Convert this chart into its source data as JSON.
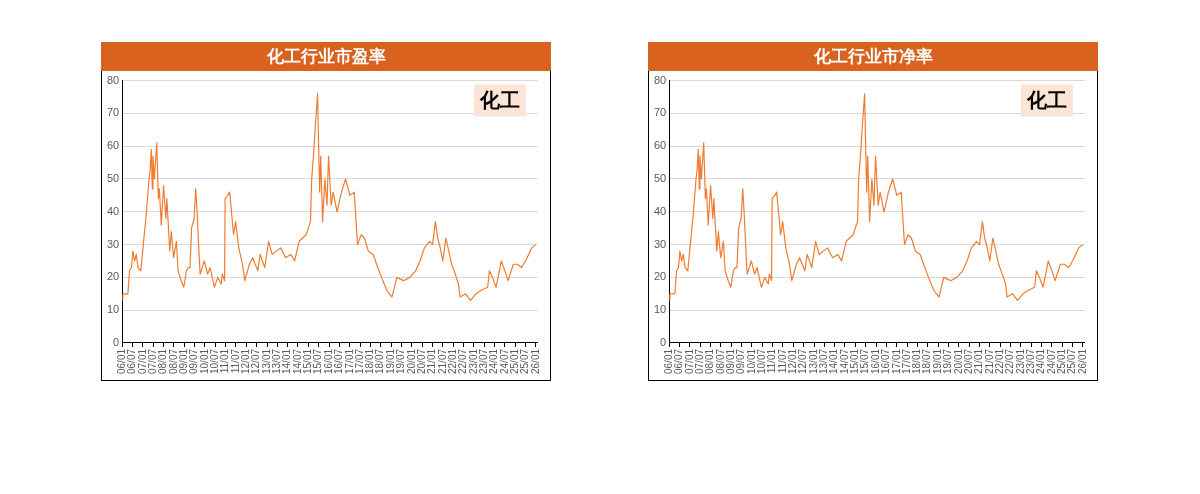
{
  "chart_data": [
    {
      "type": "line",
      "title": "化工行业市盈率",
      "annotations": [
        "化工"
      ],
      "grid": "y",
      "legend": false,
      "marker": "none",
      "ylim": [
        0,
        80
      ],
      "yticks": [
        0,
        10,
        20,
        30,
        40,
        50,
        60,
        70,
        80
      ],
      "xlim": [
        "2006-01-01",
        "2026-02-05"
      ],
      "xticks": [
        {
          "value": "2006-01",
          "label": "06/01"
        },
        {
          "value": "2006-07",
          "label": "06/07"
        },
        {
          "value": "2007-01",
          "label": "07/01"
        },
        {
          "value": "2007-07",
          "label": "07/07"
        },
        {
          "value": "2008-01",
          "label": "08/01"
        },
        {
          "value": "2008-07",
          "label": "08/07"
        },
        {
          "value": "2009-01",
          "label": "09/01"
        },
        {
          "value": "2009-07",
          "label": "09/07"
        },
        {
          "value": "2010-01",
          "label": "10/01"
        },
        {
          "value": "2010-07",
          "label": "10/07"
        },
        {
          "value": "2011-01",
          "label": "11/01"
        },
        {
          "value": "2011-07",
          "label": "11/07"
        },
        {
          "value": "2012-01",
          "label": "12/01"
        },
        {
          "value": "2012-07",
          "label": "12/07"
        },
        {
          "value": "2013-01",
          "label": "13/01"
        },
        {
          "value": "2013-07",
          "label": "13/07"
        },
        {
          "value": "2014-01",
          "label": "14/01"
        },
        {
          "value": "2014-07",
          "label": "14/07"
        },
        {
          "value": "2015-01",
          "label": "15/01"
        },
        {
          "value": "2015-07",
          "label": "15/07"
        },
        {
          "value": "2016-01",
          "label": "16/01"
        },
        {
          "value": "2016-07",
          "label": "16/07"
        },
        {
          "value": "2017-01",
          "label": "17/01"
        },
        {
          "value": "2017-07",
          "label": "17/07"
        },
        {
          "value": "2018-01",
          "label": "18/01"
        },
        {
          "value": "2018-07",
          "label": "18/07"
        },
        {
          "value": "2019-01",
          "label": "19/01"
        },
        {
          "value": "2019-07",
          "label": "19/07"
        },
        {
          "value": "2020-01",
          "label": "20/01"
        },
        {
          "value": "2020-07",
          "label": "20/07"
        },
        {
          "value": "2021-01",
          "label": "21/01"
        },
        {
          "value": "2021-07",
          "label": "21/07"
        },
        {
          "value": "2022-01",
          "label": "22/01"
        },
        {
          "value": "2022-07",
          "label": "22/07"
        },
        {
          "value": "2023-01",
          "label": "23/01"
        },
        {
          "value": "2023-07",
          "label": "23/07"
        },
        {
          "value": "2024-01",
          "label": "24/01"
        },
        {
          "value": "2024-07",
          "label": "24/07"
        },
        {
          "value": "2025-01",
          "label": "25/01"
        },
        {
          "value": "2025-07",
          "label": "25/07"
        },
        {
          "value": "2026-01",
          "label": "26/01"
        }
      ],
      "series": [
        {
          "color": "#ee7d31",
          "x": [
            "2006-01-01",
            "2006-01-11",
            "2006-04-11",
            "2006-05-10",
            "2006-06-13",
            "2006-07-08",
            "2006-08-07",
            "2006-09-05",
            "2006-10-08",
            "2006-11-25",
            "2007-01-08",
            "2007-03-05",
            "2007-04-19",
            "2007-05-10",
            "2007-05-28",
            "2007-06-16",
            "2007-06-27",
            "2007-07-22",
            "2007-09-02",
            "2007-10-01",
            "2007-10-19",
            "2007-11-21",
            "2008-01-01",
            "2008-02-10",
            "2008-02-28",
            "2008-04-19",
            "2008-05-17",
            "2008-06-27",
            "2008-08-14",
            "2008-09-13",
            "2008-11-07",
            "2008-12-23",
            "2009-02-07",
            "2009-03-13",
            "2009-04-11",
            "2009-05-10",
            "2009-06-23",
            "2009-07-22",
            "2009-08-21",
            "2009-09-13",
            "2009-10-08",
            "2009-12-20",
            "2010-02-17",
            "2010-04-01",
            "2010-06-16",
            "2010-08-14",
            "2010-10-15",
            "2010-11-03",
            "2010-12-13",
            "2010-12-23",
            "2011-02-07",
            "2011-03-13",
            "2011-05-21",
            "2011-06-27",
            "2011-08-21",
            "2011-10-26",
            "2011-12-05",
            "2012-02-25",
            "2012-04-22",
            "2012-07-22",
            "2012-09-02",
            "2012-11-21",
            "2013-01-29",
            "2013-04-01",
            "2013-06-13",
            "2013-08-28",
            "2013-11-25",
            "2014-02-25",
            "2014-05-03",
            "2014-07-22",
            "2014-11-21",
            "2015-02-07",
            "2015-02-28",
            "2015-04-04",
            "2015-05-03",
            "2015-06-13",
            "2015-07-01",
            "2015-07-19",
            "2015-08-07",
            "2015-09-09",
            "2015-10-19",
            "2015-11-25",
            "2015-12-23",
            "2016-02-07",
            "2016-03-13",
            "2016-05-21",
            "2016-08-07",
            "2016-10-19",
            "2017-01-01",
            "2017-03-20",
            "2017-05-17",
            "2017-07-19",
            "2017-09-16",
            "2017-11-25",
            "2018-02-17",
            "2018-04-19",
            "2018-07-15",
            "2018-10-19",
            "2019-01-15",
            "2019-04-11",
            "2019-08-10",
            "2019-11-25",
            "2020-03-09",
            "2020-05-25",
            "2020-08-10",
            "2020-11-10",
            "2021-01-01",
            "2021-02-21",
            "2021-04-01",
            "2021-05-17",
            "2021-07-01",
            "2021-08-25",
            "2021-12-05",
            "2022-02-07",
            "2022-04-04",
            "2022-05-03",
            "2022-08-07",
            "2022-11-03",
            "2023-02-07",
            "2023-05-03",
            "2023-09-02",
            "2023-10-01",
            "2023-11-25",
            "2024-01-29",
            "2024-04-29",
            "2024-07-01",
            "2024-08-28",
            "2024-11-28",
            "2025-02-07",
            "2025-04-22",
            "2025-07-01",
            "2025-08-25",
            "2025-10-19",
            "2025-12-27"
          ],
          "values": [
            13,
            15,
            15,
            22,
            23,
            28,
            25,
            27,
            23,
            22,
            30,
            40,
            50,
            53,
            59,
            47,
            57,
            50,
            61,
            44,
            47,
            36,
            48,
            38,
            44,
            28,
            34,
            26,
            31,
            22,
            19,
            17,
            22,
            23,
            23,
            35,
            38,
            47,
            38,
            29,
            21,
            25,
            21,
            23,
            17,
            20,
            18,
            21,
            19,
            44,
            45,
            46,
            33,
            37,
            29,
            24,
            19,
            24,
            26,
            22,
            27,
            23,
            31,
            27,
            28,
            29,
            26,
            27,
            25,
            31,
            33,
            37,
            50,
            58,
            66,
            76,
            60,
            46,
            57,
            37,
            50,
            42,
            57,
            42,
            46,
            40,
            46,
            50,
            45,
            46,
            30,
            33,
            32,
            28,
            27,
            24,
            20,
            16,
            14,
            20,
            19,
            20,
            22,
            25,
            29,
            31,
            30,
            37,
            32,
            29,
            25,
            32,
            24,
            21,
            18,
            14,
            15,
            13,
            15,
            16,
            17,
            22,
            20,
            17,
            25,
            22,
            19,
            24,
            24,
            23,
            25,
            27,
            29,
            30
          ]
        }
      ]
    },
    {
      "type": "line",
      "title": "化工行业市净率",
      "annotations": [
        "化工"
      ],
      "grid": "y",
      "legend": false,
      "marker": "none",
      "ylim": [
        0,
        80
      ],
      "yticks": [
        0,
        10,
        20,
        30,
        40,
        50,
        60,
        70,
        80
      ],
      "xlim": [
        "2006-01-01",
        "2026-02-05"
      ],
      "xticks": [
        {
          "value": "2006-01",
          "label": "06/01"
        },
        {
          "value": "2006-07",
          "label": "06/07"
        },
        {
          "value": "2007-01",
          "label": "07/01"
        },
        {
          "value": "2007-07",
          "label": "07/07"
        },
        {
          "value": "2008-01",
          "label": "08/01"
        },
        {
          "value": "2008-07",
          "label": "08/07"
        },
        {
          "value": "2009-01",
          "label": "09/01"
        },
        {
          "value": "2009-07",
          "label": "09/07"
        },
        {
          "value": "2010-01",
          "label": "10/01"
        },
        {
          "value": "2010-07",
          "label": "10/07"
        },
        {
          "value": "2011-01",
          "label": "11/01"
        },
        {
          "value": "2011-07",
          "label": "11/07"
        },
        {
          "value": "2012-01",
          "label": "12/01"
        },
        {
          "value": "2012-07",
          "label": "12/07"
        },
        {
          "value": "2013-01",
          "label": "13/01"
        },
        {
          "value": "2013-07",
          "label": "13/07"
        },
        {
          "value": "2014-01",
          "label": "14/01"
        },
        {
          "value": "2014-07",
          "label": "14/07"
        },
        {
          "value": "2015-01",
          "label": "15/01"
        },
        {
          "value": "2015-07",
          "label": "15/07"
        },
        {
          "value": "2016-01",
          "label": "16/01"
        },
        {
          "value": "2016-07",
          "label": "16/07"
        },
        {
          "value": "2017-01",
          "label": "17/01"
        },
        {
          "value": "2017-07",
          "label": "17/07"
        },
        {
          "value": "2018-01",
          "label": "18/01"
        },
        {
          "value": "2018-07",
          "label": "18/07"
        },
        {
          "value": "2019-01",
          "label": "19/01"
        },
        {
          "value": "2019-07",
          "label": "19/07"
        },
        {
          "value": "2020-01",
          "label": "20/01"
        },
        {
          "value": "2020-07",
          "label": "20/07"
        },
        {
          "value": "2021-01",
          "label": "21/01"
        },
        {
          "value": "2021-07",
          "label": "21/07"
        },
        {
          "value": "2022-01",
          "label": "22/01"
        },
        {
          "value": "2022-07",
          "label": "22/07"
        },
        {
          "value": "2023-01",
          "label": "23/01"
        },
        {
          "value": "2023-07",
          "label": "23/07"
        },
        {
          "value": "2024-01",
          "label": "24/01"
        },
        {
          "value": "2024-07",
          "label": "24/07"
        },
        {
          "value": "2025-01",
          "label": "25/01"
        },
        {
          "value": "2025-07",
          "label": "25/07"
        },
        {
          "value": "2026-01",
          "label": "26/01"
        }
      ],
      "series": [
        {
          "color": "#ee7d31",
          "x": [
            "2006-01-01",
            "2006-01-11",
            "2006-04-11",
            "2006-05-10",
            "2006-06-13",
            "2006-07-08",
            "2006-08-07",
            "2006-09-05",
            "2006-10-08",
            "2006-11-25",
            "2007-01-08",
            "2007-03-05",
            "2007-04-19",
            "2007-05-10",
            "2007-05-28",
            "2007-06-16",
            "2007-06-27",
            "2007-07-22",
            "2007-09-02",
            "2007-10-01",
            "2007-10-19",
            "2007-11-21",
            "2008-01-01",
            "2008-02-10",
            "2008-02-28",
            "2008-04-19",
            "2008-05-17",
            "2008-06-27",
            "2008-08-14",
            "2008-09-13",
            "2008-11-07",
            "2008-12-23",
            "2009-02-07",
            "2009-03-13",
            "2009-04-11",
            "2009-05-10",
            "2009-06-23",
            "2009-07-22",
            "2009-08-21",
            "2009-09-13",
            "2009-10-08",
            "2009-12-20",
            "2010-02-17",
            "2010-04-01",
            "2010-06-16",
            "2010-08-14",
            "2010-10-15",
            "2010-11-03",
            "2010-12-13",
            "2010-12-23",
            "2011-02-07",
            "2011-03-13",
            "2011-05-21",
            "2011-06-27",
            "2011-08-21",
            "2011-10-26",
            "2011-12-05",
            "2012-02-25",
            "2012-04-22",
            "2012-07-22",
            "2012-09-02",
            "2012-11-21",
            "2013-01-29",
            "2013-04-01",
            "2013-06-13",
            "2013-08-28",
            "2013-11-25",
            "2014-02-25",
            "2014-05-03",
            "2014-07-22",
            "2014-11-21",
            "2015-02-07",
            "2015-02-28",
            "2015-04-04",
            "2015-05-03",
            "2015-06-13",
            "2015-07-01",
            "2015-07-19",
            "2015-08-07",
            "2015-09-09",
            "2015-10-19",
            "2015-11-25",
            "2015-12-23",
            "2016-02-07",
            "2016-03-13",
            "2016-05-21",
            "2016-08-07",
            "2016-10-19",
            "2017-01-01",
            "2017-03-20",
            "2017-05-17",
            "2017-07-19",
            "2017-09-16",
            "2017-11-25",
            "2018-02-17",
            "2018-04-19",
            "2018-07-15",
            "2018-10-19",
            "2019-01-15",
            "2019-04-11",
            "2019-08-10",
            "2019-11-25",
            "2020-03-09",
            "2020-05-25",
            "2020-08-10",
            "2020-11-10",
            "2021-01-01",
            "2021-02-21",
            "2021-04-01",
            "2021-05-17",
            "2021-07-01",
            "2021-08-25",
            "2021-12-05",
            "2022-02-07",
            "2022-04-04",
            "2022-05-03",
            "2022-08-07",
            "2022-11-03",
            "2023-02-07",
            "2023-05-03",
            "2023-09-02",
            "2023-10-01",
            "2023-11-25",
            "2024-01-29",
            "2024-04-29",
            "2024-07-01",
            "2024-08-28",
            "2024-11-28",
            "2025-02-07",
            "2025-04-22",
            "2025-07-01",
            "2025-08-25",
            "2025-10-19",
            "2025-12-27"
          ],
          "values": [
            13,
            15,
            15,
            22,
            23,
            28,
            25,
            27,
            23,
            22,
            30,
            40,
            50,
            53,
            59,
            47,
            57,
            50,
            61,
            44,
            47,
            36,
            48,
            38,
            44,
            28,
            34,
            26,
            31,
            22,
            19,
            17,
            22,
            23,
            23,
            35,
            38,
            47,
            38,
            29,
            21,
            25,
            21,
            23,
            17,
            20,
            18,
            21,
            19,
            44,
            45,
            46,
            33,
            37,
            29,
            24,
            19,
            24,
            26,
            22,
            27,
            23,
            31,
            27,
            28,
            29,
            26,
            27,
            25,
            31,
            33,
            37,
            50,
            58,
            66,
            76,
            60,
            46,
            57,
            37,
            50,
            42,
            57,
            42,
            46,
            40,
            46,
            50,
            45,
            46,
            30,
            33,
            32,
            28,
            27,
            24,
            20,
            16,
            14,
            20,
            19,
            20,
            22,
            25,
            29,
            31,
            30,
            37,
            32,
            29,
            25,
            32,
            24,
            21,
            18,
            14,
            15,
            13,
            15,
            16,
            17,
            22,
            20,
            17,
            25,
            22,
            19,
            24,
            24,
            23,
            25,
            27,
            29,
            30
          ]
        }
      ]
    }
  ]
}
